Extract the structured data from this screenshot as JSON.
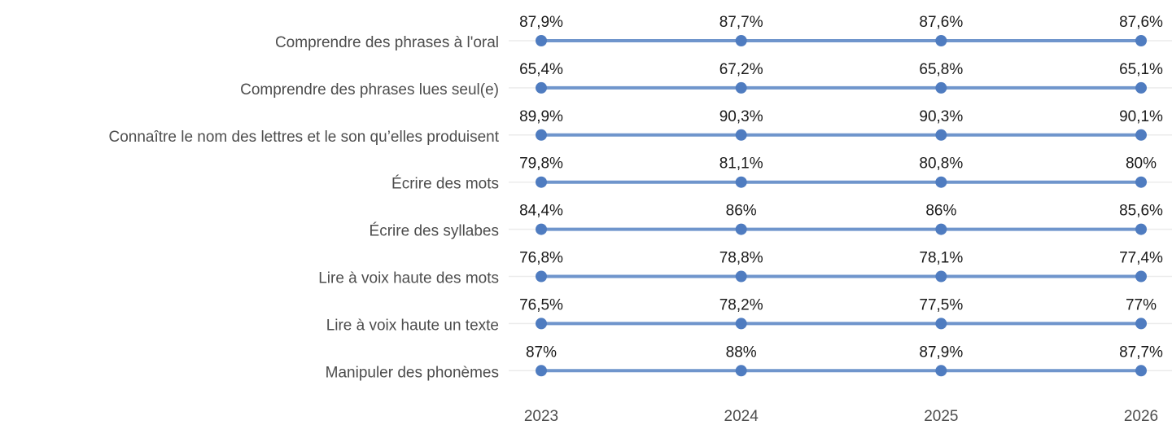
{
  "chart_data": {
    "type": "line",
    "x": [
      "2023",
      "2024",
      "2025",
      "2026"
    ],
    "color": "#6f95cc",
    "marker_color": "#4f7cc0",
    "grid": true,
    "series": [
      {
        "name": "Comprendre des phrases à l'oral",
        "values": [
          87.9,
          87.7,
          87.6,
          87.6
        ],
        "value_labels": [
          "87,9%",
          "87,7%",
          "87,6%",
          "87,6%"
        ]
      },
      {
        "name": "Comprendre des phrases lues seul(e)",
        "values": [
          65.4,
          67.2,
          65.8,
          65.1
        ],
        "value_labels": [
          "65,4%",
          "67,2%",
          "65,8%",
          "65,1%"
        ]
      },
      {
        "name": "Connaître le nom des lettres et le son qu’elles produisent",
        "values": [
          89.9,
          90.3,
          90.3,
          90.1
        ],
        "value_labels": [
          "89,9%",
          "90,3%",
          "90,3%",
          "90,1%"
        ]
      },
      {
        "name": "Écrire des mots",
        "values": [
          79.8,
          81.1,
          80.8,
          80
        ],
        "value_labels": [
          "79,8%",
          "81,1%",
          "80,8%",
          "80%"
        ]
      },
      {
        "name": "Écrire des syllabes",
        "values": [
          84.4,
          86,
          86,
          85.6
        ],
        "value_labels": [
          "84,4%",
          "86%",
          "86%",
          "85,6%"
        ]
      },
      {
        "name": "Lire à voix haute des mots",
        "values": [
          76.8,
          78.8,
          78.1,
          77.4
        ],
        "value_labels": [
          "76,8%",
          "78,8%",
          "78,1%",
          "77,4%"
        ]
      },
      {
        "name": "Lire à voix haute un texte",
        "values": [
          76.5,
          78.2,
          77.5,
          77
        ],
        "value_labels": [
          "76,5%",
          "78,2%",
          "77,5%",
          "77%"
        ]
      },
      {
        "name": "Manipuler des phonèmes",
        "values": [
          87,
          88,
          87.9,
          87.7
        ],
        "value_labels": [
          "87%",
          "88%",
          "87,9%",
          "87,7%"
        ]
      }
    ]
  }
}
